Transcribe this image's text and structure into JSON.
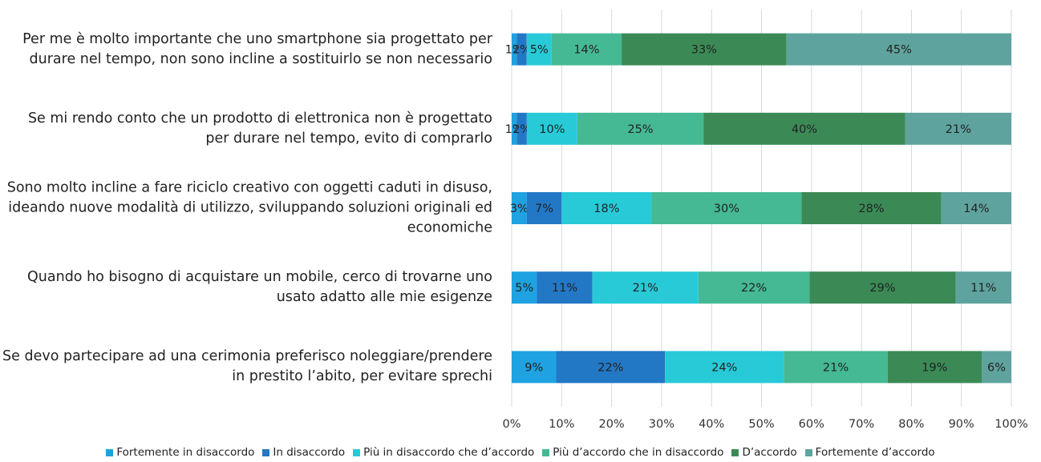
{
  "chart_data": {
    "type": "bar",
    "orientation": "horizontal",
    "stacking": "percent",
    "categories": [
      "Per me è molto importante che uno smartphone sia progettato per durare nel tempo, non sono incline a sostituirlo se non necessario",
      "Se mi rendo conto che un prodotto di elettronica non è progettato per durare nel tempo, evito di comprarlo",
      "Sono molto incline a fare riciclo creativo con oggetti caduti in disuso, ideando nuove modalità di utilizzo, sviluppando soluzioni originali ed economiche",
      "Quando ho bisogno di acquistare un mobile, cerco di trovarne uno usato adatto alle mie esigenze",
      "Se devo partecipare ad una cerimonia preferisco noleggiare/prendere in prestito l’abito, per evitare sprechi"
    ],
    "series": [
      {
        "name": "Fortemente in disaccordo",
        "color": "#1fa2e1",
        "values": [
          1,
          1,
          3,
          5,
          9
        ],
        "value_labels": [
          "1%",
          "1%",
          "3%",
          "5%",
          "9%"
        ]
      },
      {
        "name": "In disaccordo",
        "color": "#2378c6",
        "values": [
          2,
          2,
          7,
          11,
          22
        ],
        "value_labels": [
          "2%",
          "2%",
          "7%",
          "11%",
          "22%"
        ]
      },
      {
        "name": "Più in disaccordo che d’accordo",
        "color": "#28cad8",
        "values": [
          5,
          10,
          18,
          21,
          24
        ],
        "value_labels": [
          "5%",
          "10%",
          "18%",
          "21%",
          "24%"
        ]
      },
      {
        "name": "Più d’accordo che in disaccordo",
        "color": "#45b993",
        "values": [
          14,
          25,
          30,
          22,
          21
        ],
        "value_labels": [
          "14%",
          "25%",
          "30%",
          "22%",
          "21%"
        ]
      },
      {
        "name": "D’accordo",
        "color": "#3b8a56",
        "values": [
          33,
          40,
          28,
          29,
          19
        ],
        "value_labels": [
          "33%",
          "40%",
          "28%",
          "29%",
          "19%"
        ]
      },
      {
        "name": "Fortemente d’accordo",
        "color": "#5fa39e",
        "values": [
          45,
          21,
          14,
          11,
          6
        ],
        "value_labels": [
          "45%",
          "21%",
          "14%",
          "11%",
          "6%"
        ]
      }
    ],
    "xlim": [
      0,
      100
    ],
    "xticks": [
      {
        "value": 0,
        "label": "0%"
      },
      {
        "value": 10,
        "label": "10%"
      },
      {
        "value": 20,
        "label": "20%"
      },
      {
        "value": 30,
        "label": "30%"
      },
      {
        "value": 40,
        "label": "40%"
      },
      {
        "value": 50,
        "label": "50%"
      },
      {
        "value": 60,
        "label": "60%"
      },
      {
        "value": 70,
        "label": "70%"
      },
      {
        "value": 80,
        "label": "80%"
      },
      {
        "value": 90,
        "label": "90%"
      },
      {
        "value": 100,
        "label": "100%"
      }
    ],
    "grid": true,
    "legend": "bottom"
  }
}
